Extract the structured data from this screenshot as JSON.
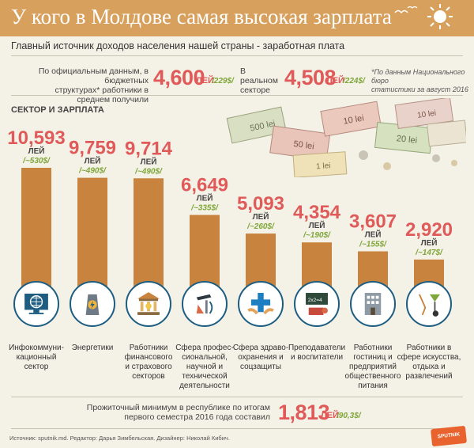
{
  "header": {
    "title": "У кого в Молдове самая высокая зарплата",
    "subtitle": "Главный источник доходов населения нашей страны - заработная плата"
  },
  "stats": {
    "official": {
      "label_line1": "По официальным данным, в бюджетных",
      "label_line2": "структурах* работники в среднем получили",
      "value": "4,600",
      "unit": "ЛЕЙ",
      "usd": "/229$/"
    },
    "real": {
      "label_line1": "В реальном",
      "label_line2": "секторе",
      "value": "4,508",
      "unit": "ЛЕЙ",
      "usd": "/224$/"
    },
    "note_line1": "*По данным Национального бюро",
    "note_line2": "статистики за август 2016"
  },
  "section_label": "СЕКТОР И ЗАРПЛАТА",
  "colors": {
    "header": "#d8a05d",
    "bar": "#c8843f",
    "value": "#e05a5a",
    "usd": "#7fa63a",
    "icon_border": "#1d5d82"
  },
  "chart_data": {
    "type": "bar",
    "unit": "ЛЕЙ",
    "categories": [
      "Инфокоммуни-кационный сектор",
      "Энергетики",
      "Работники финансового и страхового секторов",
      "Сфера профессиональной, научной и технической деятельности",
      "Сфера здравоохранения и соцзащиты",
      "Преподаватели и воспитатели",
      "Работники гостиниц и предприятий общественного питания",
      "Работники в сфере искусства, отдыха и развлечений"
    ],
    "values": [
      10593,
      9759,
      9714,
      6649,
      5093,
      4354,
      3607,
      2920
    ],
    "value_labels": [
      "10,593",
      "9,759",
      "9,714",
      "6,649",
      "5,093",
      "4,354",
      "3,607",
      "2,920"
    ],
    "usd_labels": [
      "/~530$/",
      "/~490$/",
      "/~490$/",
      "/~335$/",
      "/~260$/",
      "/~190$/",
      "/~155$/",
      "/~147$/"
    ],
    "ylim": [
      0,
      10593
    ]
  },
  "categories_display": [
    {
      "l1": "Инфокоммуни-",
      "l2": "кационный",
      "l3": "сектор",
      "l4": "",
      "l5": "",
      "icon": "computer-globe-icon"
    },
    {
      "l1": "Энергетики",
      "l2": "",
      "l3": "",
      "l4": "",
      "l5": "",
      "icon": "power-plant-icon"
    },
    {
      "l1": "Работники",
      "l2": "финансового",
      "l3": "и страхового",
      "l4": "секторов",
      "l5": "",
      "icon": "bank-icon"
    },
    {
      "l1": "Сфера профес-",
      "l2": "сиональной,",
      "l3": "научной и",
      "l4": "технической",
      "l5": "деятельности",
      "icon": "science-icon"
    },
    {
      "l1": "Сфера здраво-",
      "l2": "охранения и",
      "l3": "соцзащиты",
      "l4": "",
      "l5": "",
      "icon": "medical-icon"
    },
    {
      "l1": "Преподаватели",
      "l2": "и воспитатели",
      "l3": "",
      "l4": "",
      "l5": "",
      "icon": "blackboard-icon"
    },
    {
      "l1": "Работники",
      "l2": "гостиниц и",
      "l3": "предприятий",
      "l4": "общественного",
      "l5": "питания",
      "icon": "hotel-icon"
    },
    {
      "l1": "Работники в",
      "l2": "сфере искусства,",
      "l3": "отдыха и",
      "l4": "развлечений",
      "l5": "",
      "icon": "art-icon"
    }
  ],
  "minimum": {
    "label_line1": "Прожиточный минимум в республике по итогам",
    "label_line2": "первого семестра 2016 года составил",
    "value": "1,813",
    "unit": "ЛЕЙ",
    "usd": "/90,3$/"
  },
  "footer": {
    "source": "Источник: sputnik.md. Редактор: Дарья Зимбельская. Дизайнер: Николай Кибич.",
    "logo": "SPUTNIK"
  }
}
